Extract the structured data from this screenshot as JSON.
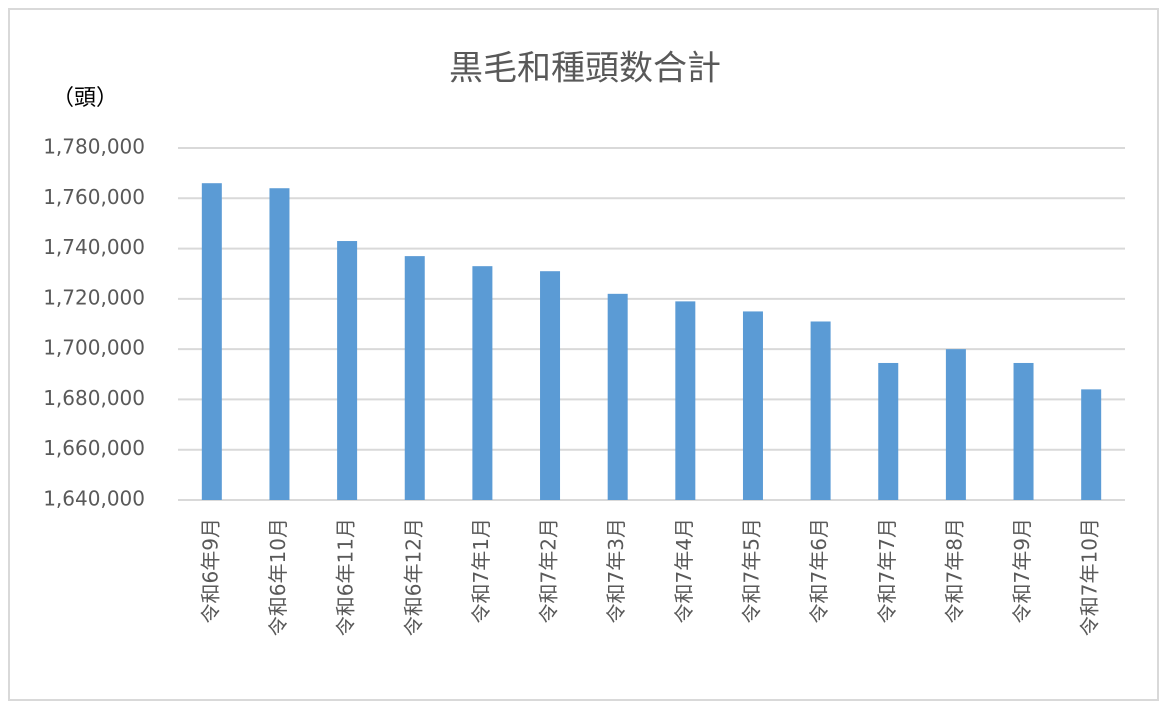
{
  "chart_data": {
    "type": "bar",
    "title": "黒毛和種頭数合計",
    "y_label": "（頭）",
    "categories": [
      "令和6年9月",
      "令和6年10月",
      "令和6年11月",
      "令和6年12月",
      "令和7年1月",
      "令和7年2月",
      "令和7年3月",
      "令和7年4月",
      "令和7年5月",
      "令和7年6月",
      "令和7年7月",
      "令和7年8月",
      "令和7年9月",
      "令和7年10月"
    ],
    "values": [
      1766000,
      1764000,
      1743000,
      1737000,
      1733000,
      1731000,
      1722000,
      1719000,
      1715000,
      1711000,
      1694500,
      1700000,
      1694500,
      1684000
    ],
    "color": "#5b9bd5",
    "ylim": [
      1640000,
      1780000
    ],
    "yticks": [
      {
        "value": 1640000,
        "label": "1,640,000"
      },
      {
        "value": 1660000,
        "label": "1,660,000"
      },
      {
        "value": 1680000,
        "label": "1,680,000"
      },
      {
        "value": 1700000,
        "label": "1,700,000"
      },
      {
        "value": 1720000,
        "label": "1,720,000"
      },
      {
        "value": 1740000,
        "label": "1,740,000"
      },
      {
        "value": 1760000,
        "label": "1,760,000"
      },
      {
        "value": 1780000,
        "label": "1,780,000"
      }
    ],
    "grid": true
  }
}
